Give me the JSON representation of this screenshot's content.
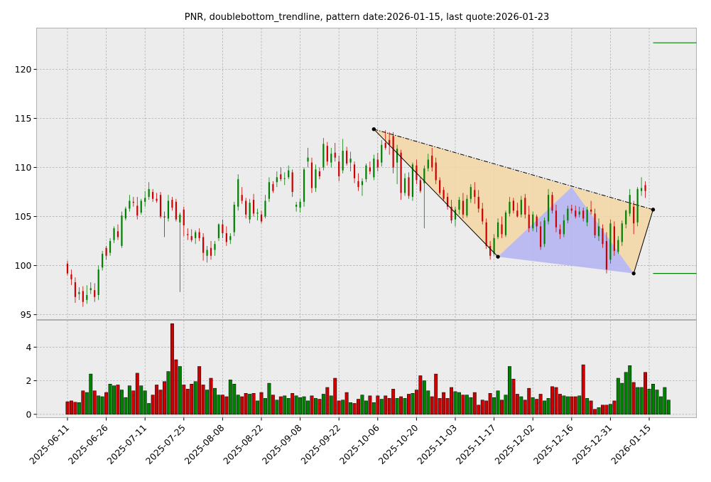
{
  "chart_data": {
    "type": "candlestick",
    "title": "PNR, doublebottom_trendline, pattern date:2026-01-15, last quote:2026-01-23",
    "price_axis": {
      "ylim": [
        94.5,
        124.2
      ],
      "ticks": [
        95,
        100,
        105,
        110,
        115,
        120
      ]
    },
    "volume_axis": {
      "ylim": [
        -0.2,
        5.6
      ],
      "ticks": [
        0,
        2,
        4
      ]
    },
    "x_ticks": [
      "2025-06-11",
      "2025-06-26",
      "2025-07-11",
      "2025-07-25",
      "2025-08-08",
      "2025-08-22",
      "2025-09-08",
      "2025-09-22",
      "2025-10-06",
      "2025-10-20",
      "2025-11-03",
      "2025-11-17",
      "2025-12-02",
      "2025-12-16",
      "2025-12-31",
      "2026-01-15"
    ],
    "x_tick_index": [
      0,
      10,
      20,
      30,
      40,
      50,
      60,
      70,
      80,
      90,
      100,
      110,
      120,
      130,
      140,
      150
    ],
    "grid": true,
    "colors": {
      "up": "#008000",
      "down": "#cc0000",
      "upper_triangle": "#f5d7a3",
      "lower_triangle": "#b3b3f2",
      "pattern_line": "#000000",
      "levels": "#008000"
    },
    "candles": [
      {
        "o": 100.2,
        "h": 100.5,
        "l": 99.0,
        "c": 99.2
      },
      {
        "o": 99.1,
        "h": 99.6,
        "l": 98.0,
        "c": 98.6
      },
      {
        "o": 98.3,
        "h": 98.8,
        "l": 96.2,
        "c": 96.8
      },
      {
        "o": 97.1,
        "h": 97.8,
        "l": 96.5,
        "c": 97.3
      },
      {
        "o": 97.4,
        "h": 97.9,
        "l": 95.8,
        "c": 96.3
      },
      {
        "o": 96.5,
        "h": 98.0,
        "l": 96.1,
        "c": 97.0
      },
      {
        "o": 97.5,
        "h": 98.3,
        "l": 97.1,
        "c": 97.7
      },
      {
        "o": 97.5,
        "h": 98.2,
        "l": 96.3,
        "c": 96.8
      },
      {
        "o": 97.0,
        "h": 100.0,
        "l": 96.5,
        "c": 99.6
      },
      {
        "o": 99.8,
        "h": 101.5,
        "l": 99.5,
        "c": 101.2
      },
      {
        "o": 101.8,
        "h": 102.0,
        "l": 100.6,
        "c": 101.0
      },
      {
        "o": 101.3,
        "h": 102.8,
        "l": 101.0,
        "c": 102.5
      },
      {
        "o": 102.6,
        "h": 104.0,
        "l": 102.3,
        "c": 103.8
      },
      {
        "o": 103.5,
        "h": 104.2,
        "l": 102.6,
        "c": 102.9
      },
      {
        "o": 102.0,
        "h": 105.5,
        "l": 101.8,
        "c": 105.1
      },
      {
        "o": 104.8,
        "h": 106.0,
        "l": 104.6,
        "c": 105.8
      },
      {
        "o": 105.8,
        "h": 107.2,
        "l": 105.5,
        "c": 106.6
      },
      {
        "o": 106.5,
        "h": 107.0,
        "l": 106.0,
        "c": 106.4
      },
      {
        "o": 106.1,
        "h": 107.0,
        "l": 104.7,
        "c": 105.1
      },
      {
        "o": 105.4,
        "h": 106.8,
        "l": 105.2,
        "c": 106.6
      },
      {
        "o": 106.5,
        "h": 107.6,
        "l": 106.0,
        "c": 106.9
      },
      {
        "o": 107.0,
        "h": 108.5,
        "l": 106.7,
        "c": 107.8
      },
      {
        "o": 107.5,
        "h": 107.8,
        "l": 106.5,
        "c": 106.8
      },
      {
        "o": 106.8,
        "h": 107.4,
        "l": 106.4,
        "c": 106.6
      },
      {
        "o": 107.2,
        "h": 107.5,
        "l": 104.8,
        "c": 105.0
      },
      {
        "o": 105.0,
        "h": 105.5,
        "l": 102.9,
        "c": 104.9
      },
      {
        "o": 104.8,
        "h": 107.2,
        "l": 104.5,
        "c": 106.6
      },
      {
        "o": 106.7,
        "h": 107.0,
        "l": 105.6,
        "c": 105.9
      },
      {
        "o": 106.5,
        "h": 106.8,
        "l": 104.5,
        "c": 104.7
      },
      {
        "o": 104.4,
        "h": 105.4,
        "l": 97.3,
        "c": 105.2
      },
      {
        "o": 105.7,
        "h": 106.0,
        "l": 103.0,
        "c": 104.1
      },
      {
        "o": 103.2,
        "h": 103.8,
        "l": 102.6,
        "c": 103.1
      },
      {
        "o": 103.0,
        "h": 103.7,
        "l": 102.4,
        "c": 102.6
      },
      {
        "o": 102.8,
        "h": 103.6,
        "l": 102.2,
        "c": 103.4
      },
      {
        "o": 103.4,
        "h": 103.8,
        "l": 102.5,
        "c": 102.8
      },
      {
        "o": 102.9,
        "h": 103.3,
        "l": 100.5,
        "c": 101.3
      },
      {
        "o": 101.0,
        "h": 102.0,
        "l": 100.3,
        "c": 101.6
      },
      {
        "o": 101.8,
        "h": 102.5,
        "l": 100.6,
        "c": 101.0
      },
      {
        "o": 101.6,
        "h": 102.5,
        "l": 101.0,
        "c": 102.2
      },
      {
        "o": 102.8,
        "h": 104.3,
        "l": 102.5,
        "c": 104.2
      },
      {
        "o": 104.2,
        "h": 104.7,
        "l": 102.8,
        "c": 103.3
      },
      {
        "o": 103.3,
        "h": 104.0,
        "l": 102.0,
        "c": 102.4
      },
      {
        "o": 102.6,
        "h": 103.3,
        "l": 102.2,
        "c": 103.0
      },
      {
        "o": 103.4,
        "h": 106.5,
        "l": 103.0,
        "c": 106.2
      },
      {
        "o": 106.0,
        "h": 109.3,
        "l": 105.6,
        "c": 108.8
      },
      {
        "o": 107.2,
        "h": 108.0,
        "l": 106.3,
        "c": 106.6
      },
      {
        "o": 106.6,
        "h": 106.9,
        "l": 104.8,
        "c": 105.2
      },
      {
        "o": 104.7,
        "h": 106.8,
        "l": 104.3,
        "c": 106.4
      },
      {
        "o": 106.7,
        "h": 107.3,
        "l": 105.0,
        "c": 105.3
      },
      {
        "o": 105.3,
        "h": 105.8,
        "l": 104.6,
        "c": 105.4
      },
      {
        "o": 105.2,
        "h": 105.6,
        "l": 104.3,
        "c": 104.5
      },
      {
        "o": 105.0,
        "h": 107.2,
        "l": 104.8,
        "c": 106.6
      },
      {
        "o": 106.8,
        "h": 109.0,
        "l": 106.5,
        "c": 108.5
      },
      {
        "o": 108.3,
        "h": 108.6,
        "l": 107.4,
        "c": 107.6
      },
      {
        "o": 108.5,
        "h": 109.6,
        "l": 108.0,
        "c": 109.0
      },
      {
        "o": 109.3,
        "h": 110.0,
        "l": 108.6,
        "c": 108.8
      },
      {
        "o": 108.9,
        "h": 109.5,
        "l": 108.2,
        "c": 108.9
      },
      {
        "o": 109.0,
        "h": 110.2,
        "l": 108.8,
        "c": 109.7
      },
      {
        "o": 109.5,
        "h": 109.8,
        "l": 107.0,
        "c": 107.5
      },
      {
        "o": 106.0,
        "h": 106.5,
        "l": 105.5,
        "c": 106.2
      },
      {
        "o": 105.9,
        "h": 106.8,
        "l": 105.4,
        "c": 106.5
      },
      {
        "o": 106.5,
        "h": 110.0,
        "l": 106.0,
        "c": 109.8
      },
      {
        "o": 110.6,
        "h": 112.0,
        "l": 110.0,
        "c": 111.0
      },
      {
        "o": 110.5,
        "h": 111.0,
        "l": 107.4,
        "c": 107.9
      },
      {
        "o": 107.9,
        "h": 110.3,
        "l": 107.5,
        "c": 109.8
      },
      {
        "o": 109.6,
        "h": 110.0,
        "l": 108.8,
        "c": 109.1
      },
      {
        "o": 110.0,
        "h": 113.0,
        "l": 109.7,
        "c": 112.4
      },
      {
        "o": 112.2,
        "h": 112.6,
        "l": 110.2,
        "c": 110.6
      },
      {
        "o": 110.5,
        "h": 112.0,
        "l": 110.0,
        "c": 111.4
      },
      {
        "o": 111.5,
        "h": 112.5,
        "l": 110.6,
        "c": 111.0
      },
      {
        "o": 110.6,
        "h": 111.2,
        "l": 108.6,
        "c": 109.1
      },
      {
        "o": 109.7,
        "h": 112.9,
        "l": 109.4,
        "c": 111.7
      },
      {
        "o": 111.7,
        "h": 112.1,
        "l": 110.2,
        "c": 110.4
      },
      {
        "o": 110.5,
        "h": 111.6,
        "l": 109.6,
        "c": 110.9
      },
      {
        "o": 110.3,
        "h": 110.6,
        "l": 108.4,
        "c": 108.9
      },
      {
        "o": 108.6,
        "h": 109.4,
        "l": 107.6,
        "c": 108.0
      },
      {
        "o": 108.2,
        "h": 108.9,
        "l": 107.1,
        "c": 108.6
      },
      {
        "o": 108.8,
        "h": 110.4,
        "l": 108.5,
        "c": 110.2
      },
      {
        "o": 110.0,
        "h": 110.6,
        "l": 109.3,
        "c": 109.6
      },
      {
        "o": 109.0,
        "h": 111.3,
        "l": 108.7,
        "c": 110.9
      },
      {
        "o": 110.8,
        "h": 111.5,
        "l": 109.6,
        "c": 110.0
      },
      {
        "o": 110.5,
        "h": 112.8,
        "l": 110.1,
        "c": 112.3
      },
      {
        "o": 112.5,
        "h": 113.8,
        "l": 111.8,
        "c": 112.0
      },
      {
        "o": 112.8,
        "h": 113.6,
        "l": 111.3,
        "c": 112.3
      },
      {
        "o": 113.2,
        "h": 113.6,
        "l": 109.4,
        "c": 110.0
      },
      {
        "o": 110.5,
        "h": 112.3,
        "l": 108.3,
        "c": 111.9
      },
      {
        "o": 111.5,
        "h": 111.8,
        "l": 106.7,
        "c": 107.4
      },
      {
        "o": 107.4,
        "h": 109.4,
        "l": 107.1,
        "c": 108.9
      },
      {
        "o": 109.0,
        "h": 109.5,
        "l": 106.8,
        "c": 107.1
      },
      {
        "o": 107.0,
        "h": 110.5,
        "l": 106.6,
        "c": 110.3
      },
      {
        "o": 110.2,
        "h": 110.8,
        "l": 108.3,
        "c": 108.7
      },
      {
        "o": 108.7,
        "h": 109.0,
        "l": 107.4,
        "c": 107.6
      },
      {
        "o": 108.4,
        "h": 110.2,
        "l": 103.8,
        "c": 109.9
      },
      {
        "o": 109.9,
        "h": 111.4,
        "l": 109.6,
        "c": 110.8
      },
      {
        "o": 111.2,
        "h": 112.0,
        "l": 109.6,
        "c": 110.0
      },
      {
        "o": 110.5,
        "h": 111.0,
        "l": 108.3,
        "c": 108.7
      },
      {
        "o": 108.7,
        "h": 109.0,
        "l": 107.2,
        "c": 107.4
      },
      {
        "o": 107.7,
        "h": 108.0,
        "l": 106.6,
        "c": 106.8
      },
      {
        "o": 107.0,
        "h": 107.4,
        "l": 105.7,
        "c": 106.0
      },
      {
        "o": 106.0,
        "h": 106.7,
        "l": 104.3,
        "c": 104.6
      },
      {
        "o": 104.7,
        "h": 106.0,
        "l": 104.0,
        "c": 105.7
      },
      {
        "o": 105.7,
        "h": 107.0,
        "l": 105.2,
        "c": 106.7
      },
      {
        "o": 106.6,
        "h": 107.4,
        "l": 104.8,
        "c": 105.2
      },
      {
        "o": 105.1,
        "h": 107.2,
        "l": 104.9,
        "c": 106.8
      },
      {
        "o": 106.8,
        "h": 108.3,
        "l": 106.4,
        "c": 108.0
      },
      {
        "o": 107.7,
        "h": 108.5,
        "l": 106.3,
        "c": 107.0
      },
      {
        "o": 107.0,
        "h": 107.7,
        "l": 105.4,
        "c": 105.8
      },
      {
        "o": 105.8,
        "h": 106.4,
        "l": 104.2,
        "c": 104.5
      },
      {
        "o": 104.4,
        "h": 104.8,
        "l": 101.7,
        "c": 102.0
      },
      {
        "o": 102.0,
        "h": 102.5,
        "l": 100.6,
        "c": 101.0
      },
      {
        "o": 101.2,
        "h": 103.2,
        "l": 101.0,
        "c": 102.8
      },
      {
        "o": 102.9,
        "h": 104.8,
        "l": 102.7,
        "c": 104.4
      },
      {
        "o": 104.2,
        "h": 105.0,
        "l": 102.8,
        "c": 103.2
      },
      {
        "o": 103.1,
        "h": 105.6,
        "l": 102.9,
        "c": 105.4
      },
      {
        "o": 105.3,
        "h": 107.0,
        "l": 105.0,
        "c": 106.5
      },
      {
        "o": 106.6,
        "h": 106.9,
        "l": 105.3,
        "c": 105.6
      },
      {
        "o": 105.6,
        "h": 106.4,
        "l": 104.9,
        "c": 105.0
      },
      {
        "o": 105.2,
        "h": 107.1,
        "l": 104.9,
        "c": 106.7
      },
      {
        "o": 106.9,
        "h": 107.3,
        "l": 104.8,
        "c": 105.2
      },
      {
        "o": 105.2,
        "h": 106.1,
        "l": 103.4,
        "c": 103.8
      },
      {
        "o": 103.8,
        "h": 105.5,
        "l": 103.5,
        "c": 105.2
      },
      {
        "o": 105.0,
        "h": 105.2,
        "l": 103.4,
        "c": 104.0
      },
      {
        "o": 104.0,
        "h": 104.5,
        "l": 101.6,
        "c": 101.9
      },
      {
        "o": 102.2,
        "h": 104.9,
        "l": 101.9,
        "c": 104.6
      },
      {
        "o": 104.5,
        "h": 107.8,
        "l": 104.2,
        "c": 107.2
      },
      {
        "o": 107.2,
        "h": 107.5,
        "l": 105.3,
        "c": 105.6
      },
      {
        "o": 105.6,
        "h": 106.2,
        "l": 103.4,
        "c": 103.9
      },
      {
        "o": 103.7,
        "h": 104.2,
        "l": 102.7,
        "c": 103.2
      },
      {
        "o": 103.2,
        "h": 105.2,
        "l": 102.9,
        "c": 104.6
      },
      {
        "o": 104.6,
        "h": 106.1,
        "l": 104.3,
        "c": 105.8
      },
      {
        "o": 105.8,
        "h": 106.2,
        "l": 105.3,
        "c": 105.6
      },
      {
        "o": 105.6,
        "h": 106.1,
        "l": 104.8,
        "c": 105.0
      },
      {
        "o": 105.2,
        "h": 106.0,
        "l": 104.9,
        "c": 105.5
      },
      {
        "o": 105.6,
        "h": 105.9,
        "l": 104.5,
        "c": 104.8
      },
      {
        "o": 104.4,
        "h": 106.0,
        "l": 104.0,
        "c": 105.7
      },
      {
        "o": 105.7,
        "h": 106.6,
        "l": 105.2,
        "c": 105.5
      },
      {
        "o": 105.3,
        "h": 105.8,
        "l": 102.8,
        "c": 103.1
      },
      {
        "o": 103.0,
        "h": 104.8,
        "l": 102.5,
        "c": 104.0
      },
      {
        "o": 103.8,
        "h": 104.2,
        "l": 101.8,
        "c": 102.2
      },
      {
        "o": 102.5,
        "h": 103.4,
        "l": 99.2,
        "c": 99.6
      },
      {
        "o": 100.6,
        "h": 104.7,
        "l": 100.2,
        "c": 104.3
      },
      {
        "o": 104.0,
        "h": 104.5,
        "l": 101.0,
        "c": 101.5
      },
      {
        "o": 101.4,
        "h": 103.0,
        "l": 101.2,
        "c": 102.6
      },
      {
        "o": 102.4,
        "h": 104.6,
        "l": 102.0,
        "c": 104.3
      },
      {
        "o": 104.2,
        "h": 105.7,
        "l": 103.8,
        "c": 105.6
      },
      {
        "o": 105.3,
        "h": 107.8,
        "l": 105.0,
        "c": 107.2
      },
      {
        "o": 106.0,
        "h": 106.6,
        "l": 103.2,
        "c": 104.3
      },
      {
        "o": 104.4,
        "h": 108.0,
        "l": 104.0,
        "c": 107.8
      },
      {
        "o": 107.6,
        "h": 109.0,
        "l": 107.1,
        "c": 107.9
      },
      {
        "o": 108.2,
        "h": 108.6,
        "l": 106.9,
        "c": 107.6
      }
    ],
    "volume": [
      0.75,
      0.8,
      0.72,
      0.7,
      1.4,
      1.3,
      2.4,
      1.4,
      1.1,
      1.05,
      1.3,
      1.8,
      1.7,
      1.75,
      1.45,
      1.0,
      1.7,
      1.4,
      2.45,
      1.7,
      1.4,
      0.65,
      1.15,
      1.75,
      1.45,
      1.95,
      2.55,
      5.4,
      3.25,
      2.85,
      1.75,
      1.5,
      1.8,
      1.95,
      2.85,
      1.75,
      1.45,
      2.15,
      1.55,
      1.15,
      1.15,
      1.05,
      2.05,
      1.8,
      1.15,
      1.05,
      1.25,
      1.2,
      1.25,
      0.8,
      1.3,
      0.95,
      1.85,
      1.15,
      0.85,
      1.05,
      1.1,
      0.95,
      1.25,
      1.1,
      1.0,
      1.05,
      0.8,
      1.1,
      0.95,
      0.9,
      1.2,
      1.6,
      1.1,
      2.15,
      0.8,
      0.85,
      1.3,
      0.7,
      0.65,
      0.9,
      1.15,
      0.8,
      1.1,
      0.7,
      1.1,
      0.9,
      1.1,
      0.95,
      1.5,
      0.95,
      1.05,
      0.95,
      1.2,
      1.25,
      1.45,
      2.3,
      2.0,
      1.4,
      1.05,
      2.4,
      0.95,
      1.3,
      0.95,
      1.6,
      1.35,
      1.3,
      1.15,
      1.15,
      1.0,
      1.3,
      0.55,
      0.85,
      0.8,
      1.25,
      1.0,
      1.4,
      0.85,
      1.15,
      2.85,
      2.1,
      1.2,
      1.05,
      0.85,
      1.55,
      1.0,
      0.9,
      1.2,
      0.8,
      0.95,
      1.65,
      1.6,
      1.2,
      1.1,
      1.05,
      1.05,
      1.05,
      1.1,
      2.95,
      0.95,
      0.8,
      0.3,
      0.4,
      0.55,
      0.55,
      0.6,
      0.8,
      2.15,
      1.85,
      2.5,
      2.9,
      1.9,
      1.6,
      1.6,
      2.5,
      1.5,
      1.8,
      1.45,
      1.05,
      1.6,
      0.85
    ],
    "pattern_points": [
      {
        "date": "2025-10-06",
        "price": 113.9
      },
      {
        "date": "2025-11-19",
        "price": 100.9
      },
      {
        "date": "2025-12-16",
        "price": 108.0
      },
      {
        "date": "2026-01-09",
        "price": 99.2
      },
      {
        "date": "2026-01-15",
        "price": 105.7
      }
    ],
    "pattern_index": [
      79,
      111,
      130,
      146,
      151
    ],
    "levels": [
      122.7,
      99.2
    ]
  }
}
